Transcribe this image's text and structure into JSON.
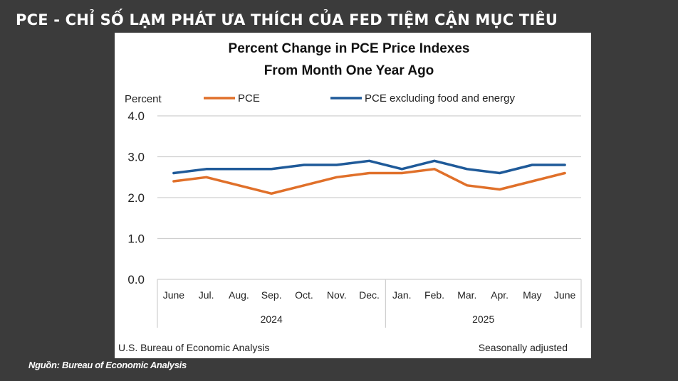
{
  "slide": {
    "title": "PCE - CHỈ SỐ LẠM PHÁT ƯA THÍCH CỦA FED TIỆM CẬN MỤC TIÊU",
    "source_note": "Nguồn: Bureau of Economic Analysis",
    "background_color": "#3b3b3b"
  },
  "chart_data": {
    "type": "line",
    "title": "Percent Change in PCE Price Indexes",
    "subtitle": "From Month One Year Ago",
    "ylabel": "Percent",
    "ylim": [
      0,
      4
    ],
    "yticks": [
      "4.0",
      "3.0",
      "2.0",
      "1.0",
      "0.0"
    ],
    "categories": [
      "June",
      "Jul.",
      "Aug.",
      "Sep.",
      "Oct.",
      "Nov.",
      "Dec.",
      "Jan.",
      "Feb.",
      "Mar.",
      "Apr.",
      "May",
      "June"
    ],
    "year_groups": [
      {
        "label": "2024",
        "count": 7
      },
      {
        "label": "2025",
        "count": 6
      }
    ],
    "series": [
      {
        "name": "PCE",
        "color": "#e0702a",
        "values": [
          2.4,
          2.5,
          2.3,
          2.1,
          2.3,
          2.5,
          2.6,
          2.6,
          2.7,
          2.3,
          2.2,
          2.4,
          2.6
        ]
      },
      {
        "name": "PCE excluding food and energy",
        "color": "#1f5a99",
        "values": [
          2.6,
          2.7,
          2.7,
          2.7,
          2.8,
          2.8,
          2.9,
          2.7,
          2.9,
          2.7,
          2.6,
          2.8,
          2.8
        ]
      }
    ],
    "grid": true,
    "legend": "top",
    "footer_left": "U.S. Bureau of Economic Analysis",
    "footer_right": "Seasonally adjusted"
  }
}
